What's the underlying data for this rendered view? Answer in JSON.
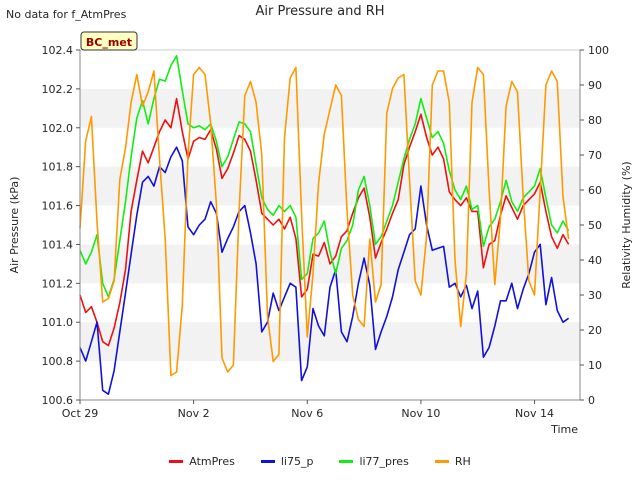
{
  "chart_data": {
    "type": "line",
    "title": "Air Pressure and RH",
    "note": "No data for f_AtmPres",
    "badge": "BC_met",
    "xlabel": "Time",
    "ylabel": "Air Pressure (kPa)",
    "y2label": "Relativity Humidity (%)",
    "x_ticks": [
      "Oct 29",
      "Nov 2",
      "Nov 6",
      "Nov 10",
      "Nov 14"
    ],
    "x_tick_days": [
      0,
      4,
      8,
      12,
      16
    ],
    "xlim_days": [
      0,
      17.6
    ],
    "ylim": [
      100.6,
      102.4
    ],
    "y_ticks": [
      "100.6",
      "100.8",
      "101.0",
      "101.2",
      "101.4",
      "101.6",
      "101.8",
      "102.0",
      "102.2",
      "102.4"
    ],
    "y2lim": [
      0,
      100
    ],
    "y2_ticks": [
      "0",
      "10",
      "20",
      "30",
      "40",
      "50",
      "60",
      "70",
      "80",
      "90",
      "100"
    ],
    "grid": "horizontal bands",
    "legend_position": "bottom-center",
    "series": [
      {
        "name": "AtmPres",
        "axis": "left",
        "color": "#ee1111",
        "x": [
          0.0,
          0.2,
          0.4,
          0.6,
          0.8,
          1.0,
          1.2,
          1.4,
          1.6,
          1.8,
          2.0,
          2.2,
          2.4,
          2.6,
          2.8,
          3.0,
          3.2,
          3.4,
          3.6,
          3.8,
          4.0,
          4.2,
          4.4,
          4.6,
          4.8,
          5.0,
          5.2,
          5.4,
          5.6,
          5.8,
          6.0,
          6.2,
          6.4,
          6.6,
          6.8,
          7.0,
          7.2,
          7.4,
          7.6,
          7.8,
          8.0,
          8.2,
          8.4,
          8.6,
          8.8,
          9.0,
          9.2,
          9.4,
          9.6,
          9.8,
          10.0,
          10.2,
          10.4,
          10.6,
          10.8,
          11.0,
          11.2,
          11.4,
          11.6,
          11.8,
          12.0,
          12.2,
          12.4,
          12.6,
          12.8,
          13.0,
          13.2,
          13.4,
          13.6,
          13.8,
          14.0,
          14.2,
          14.4,
          14.6,
          14.8,
          15.0,
          15.2,
          15.4,
          15.6,
          15.8,
          16.0,
          16.2,
          16.4,
          16.6,
          16.8,
          17.0,
          17.2
        ],
        "values": [
          101.14,
          101.05,
          101.08,
          101.0,
          100.9,
          100.88,
          100.97,
          101.1,
          101.27,
          101.57,
          101.73,
          101.88,
          101.82,
          101.9,
          101.98,
          102.04,
          102.0,
          102.15,
          101.98,
          101.84,
          101.93,
          101.95,
          101.94,
          101.99,
          101.89,
          101.74,
          101.79,
          101.87,
          101.96,
          101.94,
          101.88,
          101.73,
          101.56,
          101.53,
          101.5,
          101.53,
          101.48,
          101.54,
          101.43,
          101.13,
          101.17,
          101.35,
          101.34,
          101.41,
          101.3,
          101.34,
          101.44,
          101.47,
          101.56,
          101.64,
          101.69,
          101.54,
          101.33,
          101.41,
          101.48,
          101.56,
          101.63,
          101.81,
          101.9,
          101.98,
          102.07,
          101.95,
          101.86,
          101.9,
          101.84,
          101.67,
          101.63,
          101.6,
          101.64,
          101.57,
          101.57,
          101.28,
          101.4,
          101.42,
          101.55,
          101.65,
          101.59,
          101.53,
          101.6,
          101.63,
          101.66,
          101.72,
          101.57,
          101.44,
          101.38,
          101.45,
          101.4
        ],
        "gap_after_index": 54
      },
      {
        "name": "li75_p",
        "axis": "left",
        "color": "#1111dd",
        "x": [
          0.0,
          0.2,
          0.4,
          0.6,
          0.8,
          1.0,
          1.2,
          1.4,
          1.6,
          1.8,
          2.0,
          2.2,
          2.4,
          2.6,
          2.8,
          3.0,
          3.2,
          3.4,
          3.6,
          3.8,
          4.0,
          4.2,
          4.4,
          4.6,
          4.8,
          5.0,
          5.2,
          5.4,
          5.6,
          5.8,
          6.0,
          6.2,
          6.4,
          6.6,
          6.8,
          7.0,
          7.2,
          7.4,
          7.6,
          7.8,
          8.0,
          8.2,
          8.4,
          8.6,
          8.8,
          9.0,
          9.2,
          9.4,
          9.6,
          9.8,
          10.0,
          10.2,
          10.4,
          10.6,
          10.8,
          11.0,
          11.2,
          11.4,
          11.6,
          11.8,
          12.0,
          12.2,
          12.4,
          12.6,
          12.8,
          13.0,
          13.2,
          13.4,
          13.6,
          13.8,
          14.0,
          14.2,
          14.4,
          14.6,
          14.8,
          15.0,
          15.2,
          15.4,
          15.6,
          15.8,
          16.0,
          16.2,
          16.4,
          16.6,
          16.8,
          17.0,
          17.2
        ],
        "values": [
          100.87,
          100.8,
          100.9,
          101.0,
          100.65,
          100.63,
          100.75,
          100.95,
          101.15,
          101.35,
          101.55,
          101.72,
          101.75,
          101.7,
          101.8,
          101.77,
          101.85,
          101.9,
          101.83,
          101.49,
          101.45,
          101.5,
          101.53,
          101.62,
          101.56,
          101.36,
          101.43,
          101.49,
          101.57,
          101.6,
          101.46,
          101.3,
          100.95,
          101.0,
          101.15,
          101.06,
          101.13,
          101.2,
          101.18,
          100.7,
          100.77,
          101.07,
          100.98,
          100.93,
          101.18,
          101.27,
          100.95,
          100.9,
          101.03,
          101.2,
          101.33,
          101.19,
          100.86,
          100.95,
          101.03,
          101.13,
          101.27,
          101.36,
          101.45,
          101.48,
          101.7,
          101.5,
          101.37,
          101.38,
          101.39,
          101.18,
          101.2,
          101.13,
          101.19,
          101.07,
          101.16,
          100.82,
          100.87,
          100.98,
          101.11,
          101.11,
          101.2,
          101.07,
          101.17,
          101.25,
          101.36,
          101.4,
          101.09,
          101.23,
          101.06,
          101.0,
          101.02
        ],
        "gap_after_index": 54
      },
      {
        "name": "li77_pres",
        "axis": "left",
        "color": "#11ee11",
        "x": [
          0.0,
          0.2,
          0.4,
          0.6,
          0.8,
          1.0,
          1.2,
          1.4,
          1.6,
          1.8,
          2.0,
          2.2,
          2.4,
          2.6,
          2.8,
          3.0,
          3.2,
          3.4,
          3.6,
          3.8,
          4.0,
          4.2,
          4.4,
          4.6,
          4.8,
          5.0,
          5.2,
          5.4,
          5.6,
          5.8,
          6.0,
          6.2,
          6.4,
          6.6,
          6.8,
          7.0,
          7.2,
          7.4,
          7.6,
          7.8,
          8.0,
          8.2,
          8.4,
          8.6,
          8.8,
          9.0,
          9.2,
          9.4,
          9.6,
          9.8,
          10.0,
          10.2,
          10.4,
          10.6,
          10.8,
          11.0,
          11.2,
          11.4,
          11.6,
          11.8,
          12.0,
          12.2,
          12.4,
          12.6,
          12.8,
          13.0,
          13.2,
          13.4,
          13.6,
          13.8,
          14.0,
          14.2,
          14.4,
          14.6,
          14.8,
          15.0,
          15.2,
          15.4,
          15.6,
          15.8,
          16.0,
          16.2,
          16.4,
          16.6,
          16.8,
          17.0,
          17.2
        ],
        "values": [
          101.37,
          101.3,
          101.36,
          101.45,
          101.2,
          101.13,
          101.22,
          101.42,
          101.62,
          101.85,
          102.05,
          102.14,
          102.02,
          102.15,
          102.25,
          102.24,
          102.32,
          102.37,
          102.19,
          102.02,
          102.0,
          102.01,
          101.99,
          102.02,
          101.93,
          101.8,
          101.85,
          101.94,
          102.03,
          102.02,
          101.98,
          101.81,
          101.64,
          101.58,
          101.55,
          101.6,
          101.57,
          101.6,
          101.54,
          101.22,
          101.25,
          101.43,
          101.46,
          101.52,
          101.36,
          101.25,
          101.38,
          101.42,
          101.5,
          101.68,
          101.75,
          101.6,
          101.4,
          101.44,
          101.52,
          101.6,
          101.72,
          101.84,
          101.94,
          102.02,
          102.15,
          102.05,
          101.95,
          101.98,
          101.92,
          101.78,
          101.68,
          101.63,
          101.7,
          101.58,
          101.6,
          101.39,
          101.49,
          101.53,
          101.62,
          101.73,
          101.62,
          101.57,
          101.64,
          101.67,
          101.7,
          101.79,
          101.64,
          101.5,
          101.46,
          101.52,
          101.47
        ],
        "gap_after_index": 54
      },
      {
        "name": "RH",
        "axis": "right",
        "color": "#ff9900",
        "x": [
          0.0,
          0.2,
          0.4,
          0.6,
          0.8,
          1.0,
          1.2,
          1.4,
          1.6,
          1.8,
          2.0,
          2.2,
          2.4,
          2.6,
          2.8,
          3.0,
          3.2,
          3.4,
          3.6,
          3.8,
          4.0,
          4.2,
          4.4,
          4.6,
          4.8,
          5.0,
          5.2,
          5.4,
          5.6,
          5.8,
          6.0,
          6.2,
          6.4,
          6.6,
          6.8,
          7.0,
          7.2,
          7.4,
          7.6,
          7.8,
          8.0,
          8.2,
          8.4,
          8.6,
          8.8,
          9.0,
          9.2,
          9.4,
          9.6,
          9.8,
          10.0,
          10.2,
          10.4,
          10.6,
          10.8,
          11.0,
          11.2,
          11.4,
          11.6,
          11.8,
          12.0,
          12.2,
          12.4,
          12.6,
          12.8,
          13.0,
          13.2,
          13.4,
          13.6,
          13.8,
          14.0,
          14.2,
          14.4,
          14.6,
          14.8,
          15.0,
          15.2,
          15.4,
          15.6,
          15.8,
          16.0,
          16.2,
          16.4,
          16.6,
          16.8,
          17.0,
          17.2
        ],
        "values": [
          49,
          74,
          81,
          51,
          28,
          29,
          34,
          63,
          72,
          85,
          93,
          84,
          88,
          94,
          69,
          46,
          7,
          8,
          27,
          70,
          93,
          95,
          93,
          79,
          56,
          12,
          8,
          10,
          54,
          87,
          91,
          85,
          70,
          24,
          11,
          13,
          75,
          92,
          95,
          53,
          18,
          36,
          62,
          76,
          83,
          90,
          87,
          54,
          30,
          23,
          21,
          46,
          28,
          33,
          82,
          89,
          92,
          93,
          63,
          34,
          30,
          47,
          90,
          94,
          94,
          85,
          40,
          21,
          36,
          85,
          95,
          93,
          60,
          33,
          52,
          84,
          91,
          88,
          58,
          34,
          30,
          60,
          90,
          94,
          91,
          58,
          46
        ],
        "gap_after_index": 54
      }
    ]
  }
}
